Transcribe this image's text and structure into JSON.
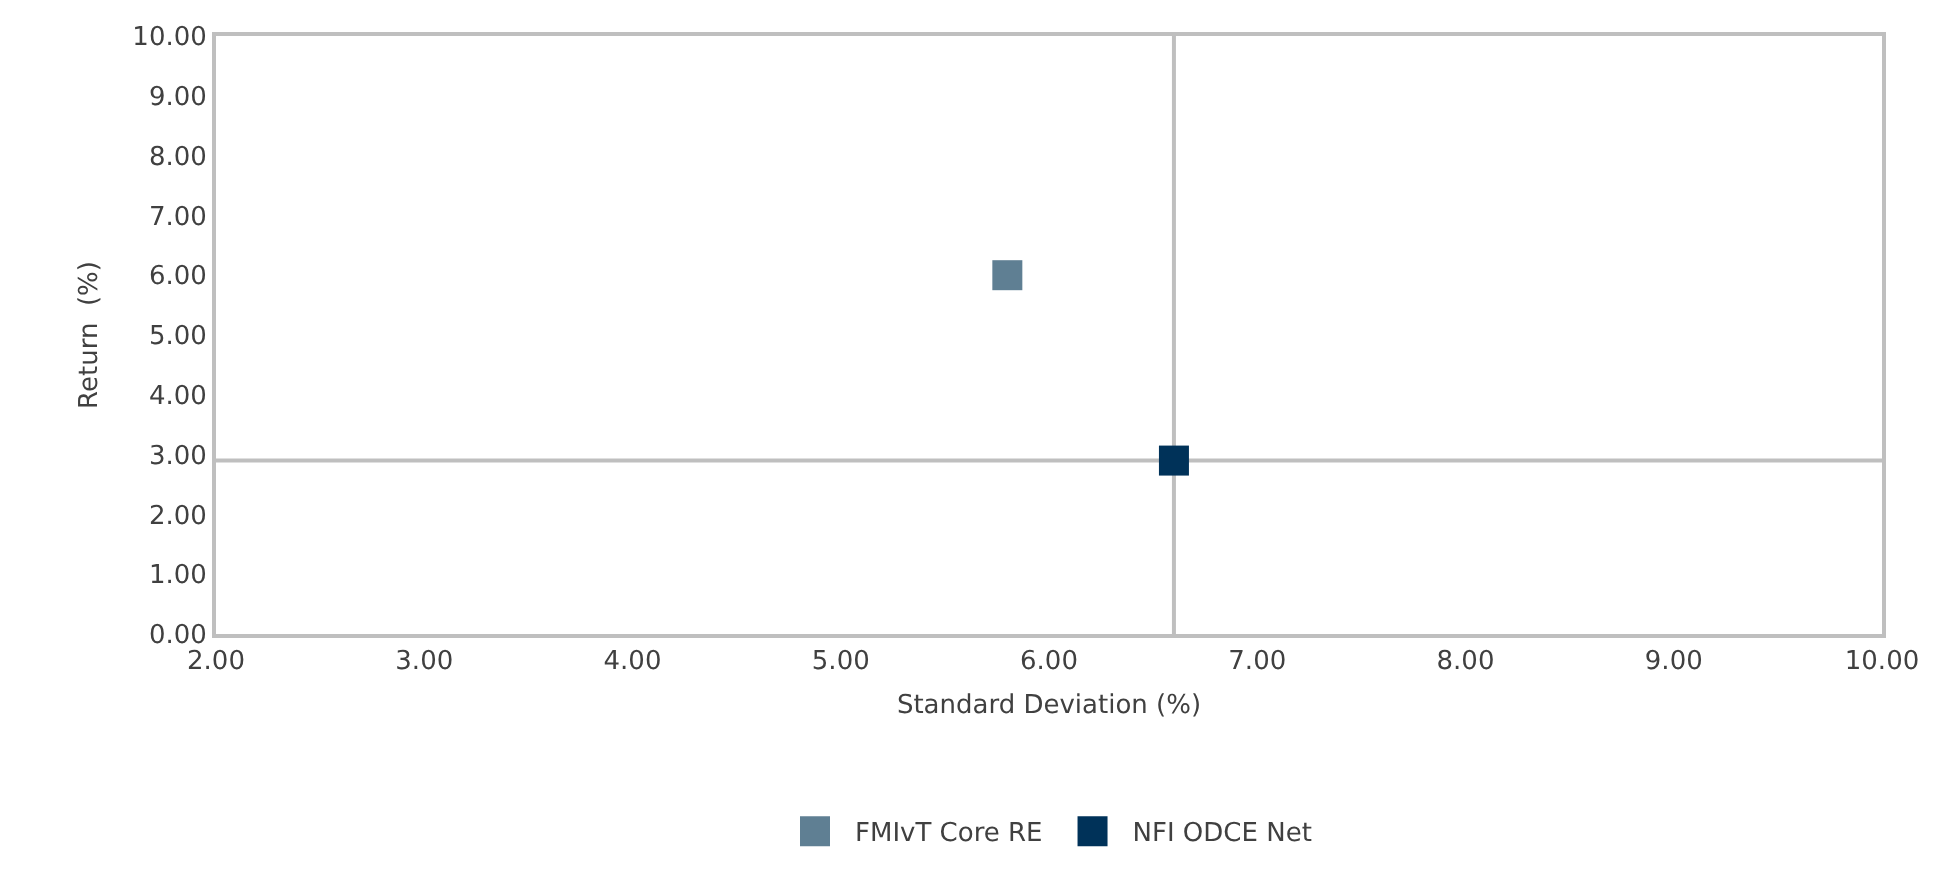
{
  "chart_data": {
    "type": "scatter",
    "xlabel": "Standard Deviation (%)",
    "ylabel": "Return  (%)",
    "series": [
      {
        "name": "FMIvT Core RE",
        "color": "#5f7f93",
        "x": [
          5.8
        ],
        "values": [
          6.0
        ]
      },
      {
        "name": "NFI ODCE Net",
        "color": "#003259",
        "x": [
          6.6
        ],
        "values": [
          2.9
        ]
      }
    ],
    "xlim": [
      2,
      10
    ],
    "xticks": [
      {
        "value": 2,
        "label": "2.00"
      },
      {
        "value": 3,
        "label": "3.00"
      },
      {
        "value": 4,
        "label": "4.00"
      },
      {
        "value": 5,
        "label": "5.00"
      },
      {
        "value": 6,
        "label": "6.00"
      },
      {
        "value": 7,
        "label": "7.00"
      },
      {
        "value": 8,
        "label": "8.00"
      },
      {
        "value": 9,
        "label": "9.00"
      },
      {
        "value": 10,
        "label": "10.00"
      }
    ],
    "ylim": [
      0,
      10
    ],
    "yticks": [
      {
        "value": 0,
        "label": "0.00"
      },
      {
        "value": 1,
        "label": "1.00"
      },
      {
        "value": 2,
        "label": "2.00"
      },
      {
        "value": 3,
        "label": "3.00"
      },
      {
        "value": 4,
        "label": "4.00"
      },
      {
        "value": 5,
        "label": "5.00"
      },
      {
        "value": 6,
        "label": "6.00"
      },
      {
        "value": 7,
        "label": "7.00"
      },
      {
        "value": 8,
        "label": "8.00"
      },
      {
        "value": 9,
        "label": "9.00"
      },
      {
        "value": 10,
        "label": "10.00"
      }
    ],
    "ref_lines": [
      {
        "axis": "x",
        "value": 6.6,
        "color": "#bfbfbf"
      },
      {
        "axis": "y",
        "value": 2.9,
        "color": "#bfbfbf"
      }
    ],
    "grid": false,
    "legend": "bottom",
    "marker": "square"
  }
}
